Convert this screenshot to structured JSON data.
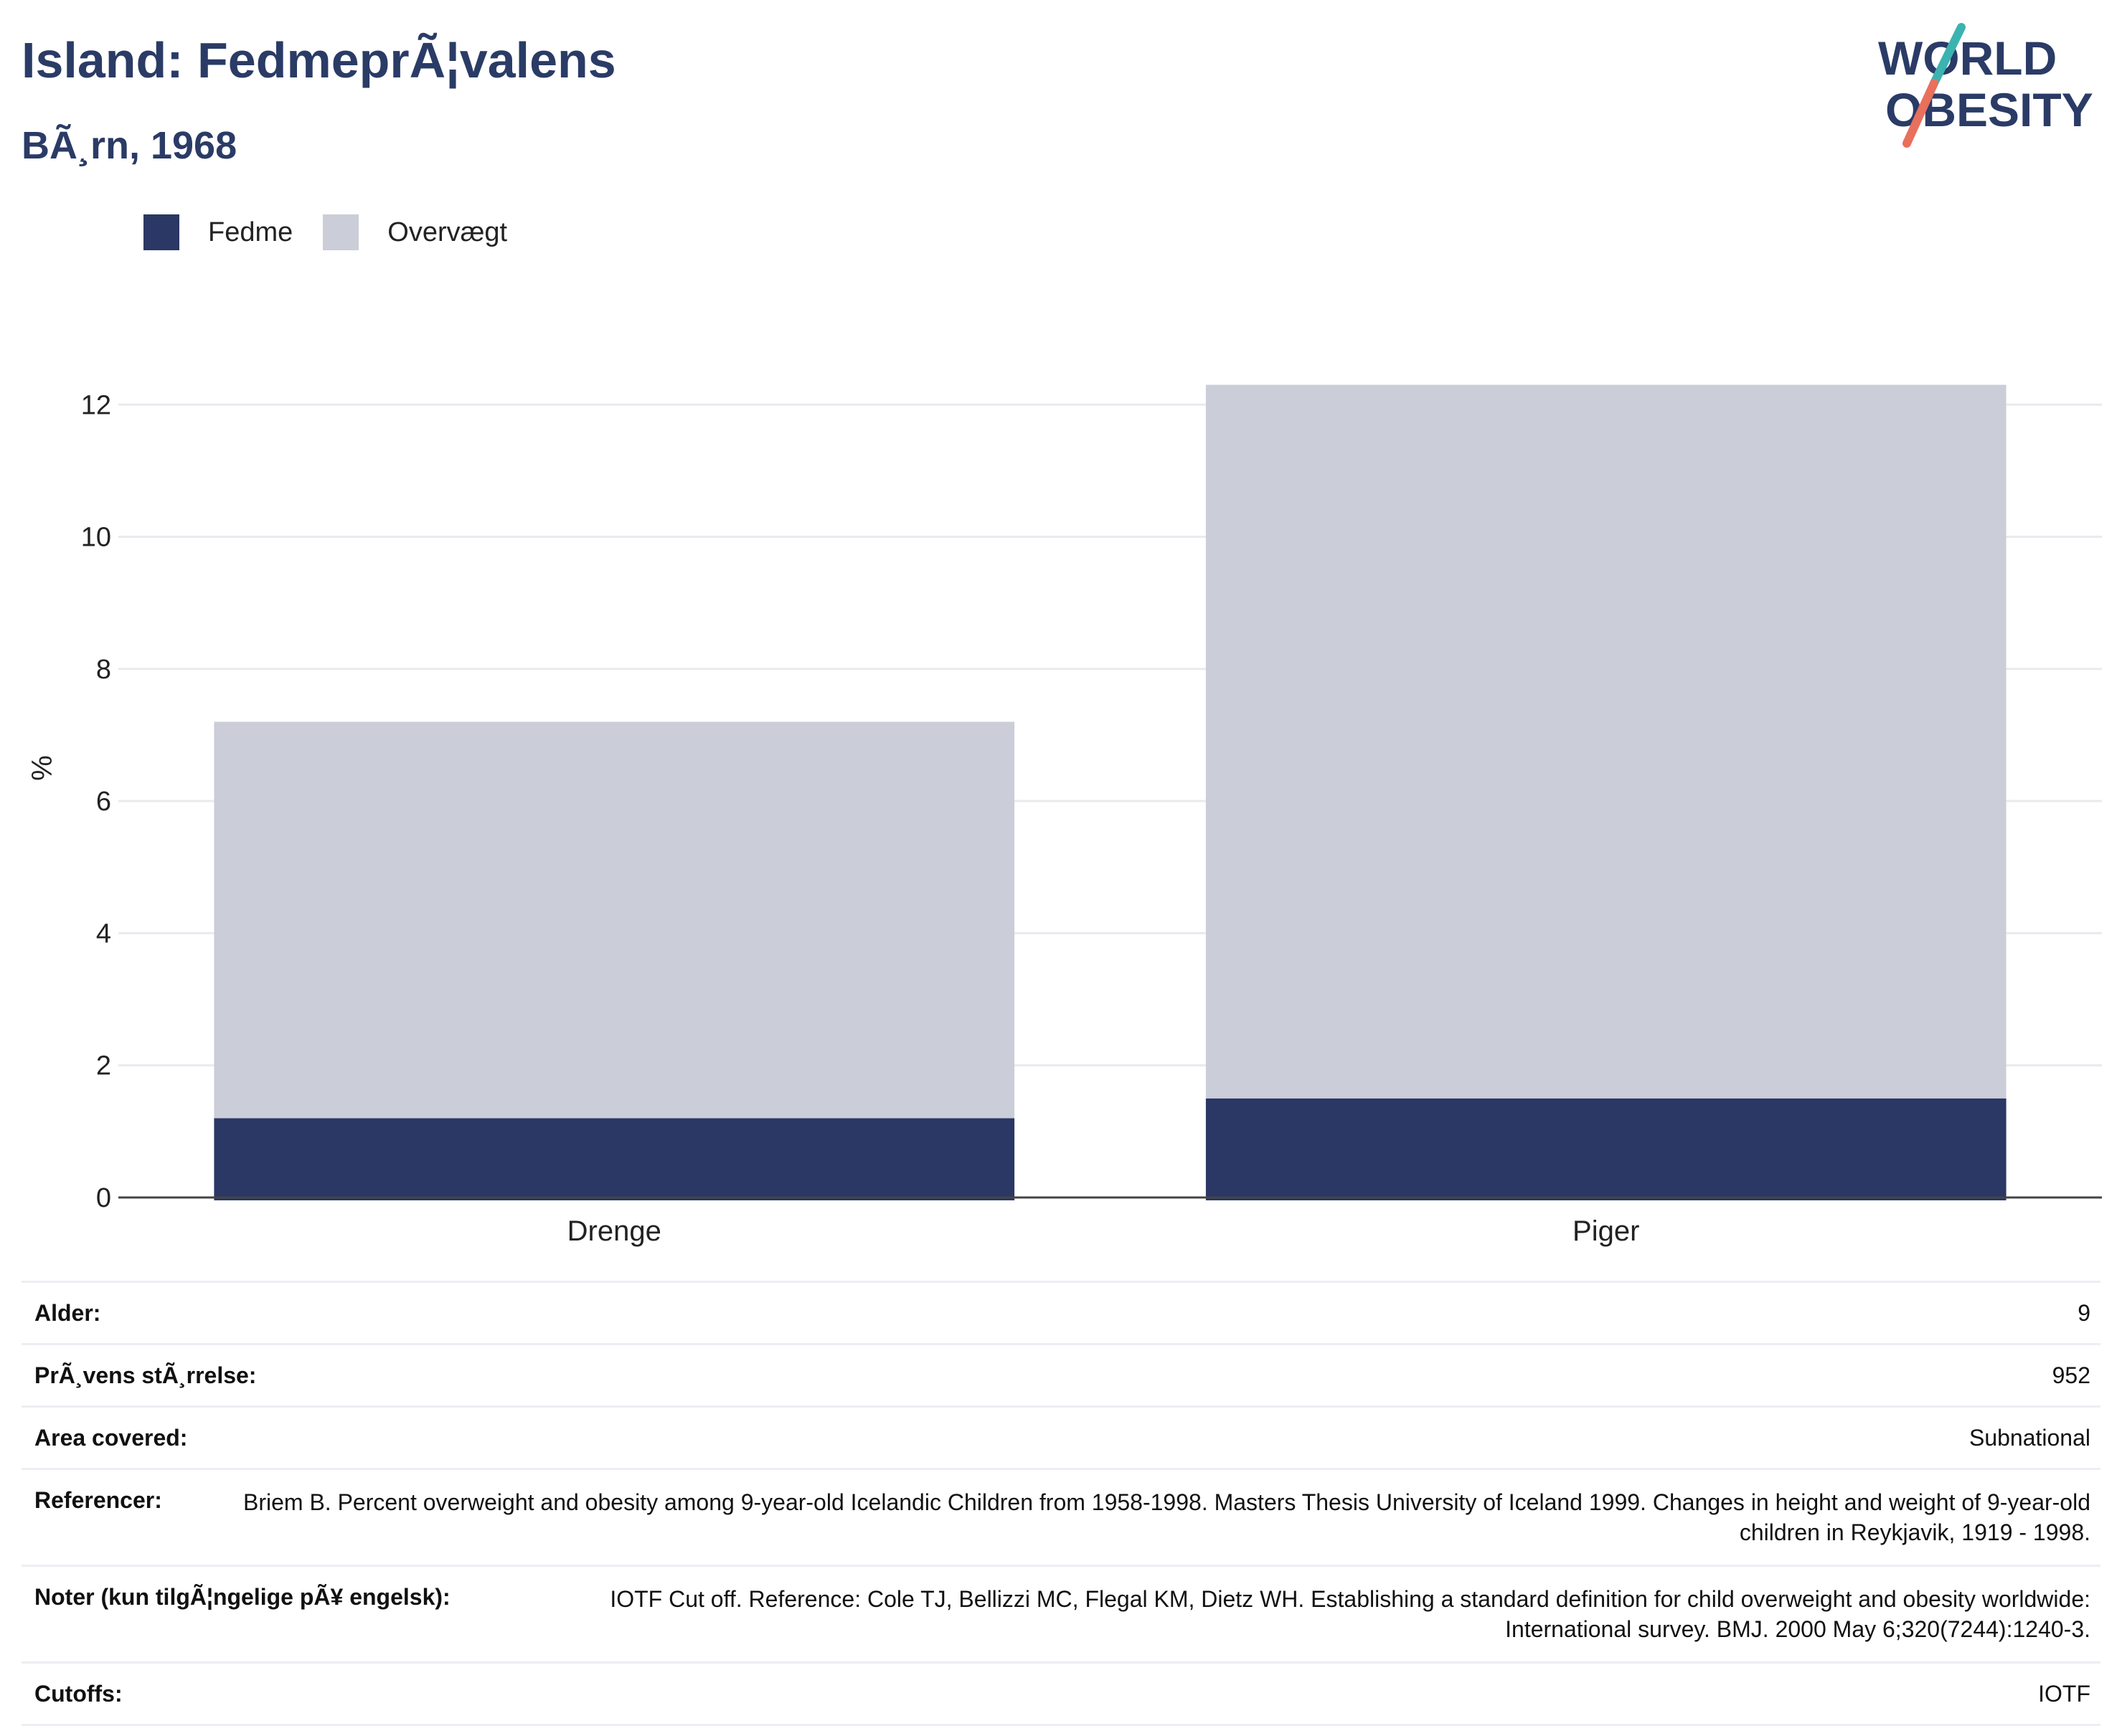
{
  "header": {
    "title": "Island: FedmeprÃ¦valens",
    "subtitle": "BÃ¸rn, 1968",
    "logo_text_line1": "WORLD",
    "logo_text_line2": "OBESITY"
  },
  "colors": {
    "brand_navy": "#2a3b66",
    "obesity": "#2b3764",
    "overweight": "#cbcdd8",
    "logo_teal": "#3bb3b0",
    "logo_coral": "#e8705c"
  },
  "legend": [
    {
      "label": "Fedme",
      "color": "#2b3764"
    },
    {
      "label": "Overvægt",
      "color": "#cbcdd8"
    }
  ],
  "chart_data": {
    "type": "bar",
    "stacked": true,
    "categories": [
      "Drenge",
      "Piger"
    ],
    "series": [
      {
        "name": "Fedme",
        "values": [
          1.2,
          1.5
        ]
      },
      {
        "name": "Overvægt",
        "values": [
          6.0,
          10.8
        ]
      }
    ],
    "ylabel": "%",
    "ylim": [
      0,
      14
    ],
    "yticks": [
      0,
      2,
      4,
      6,
      8,
      10,
      12
    ],
    "grid": true,
    "legend_position": "top-left"
  },
  "info": [
    {
      "label": "Alder:",
      "value": "9"
    },
    {
      "label": "PrÃ¸vens stÃ¸rrelse:",
      "value": "952"
    },
    {
      "label": "Area covered:",
      "value": "Subnational"
    },
    {
      "label": "Referencer:",
      "value": "Briem B. Percent overweight and obesity among 9-year-old Icelandic Children from 1958-1998. Masters Thesis University of Iceland 1999. Changes in height and weight of 9-year-old children in Reykjavik, 1919 - 1998."
    },
    {
      "label": "Noter (kun tilgÃ¦ngelige pÃ¥ engelsk):",
      "value": "IOTF Cut off. Reference: Cole TJ, Bellizzi MC, Flegal KM, Dietz WH. Establishing a standard definition for child overweight and obesity worldwide: International survey. BMJ. 2000 May 6;320(7244):1240-3."
    },
    {
      "label": "Cutoffs:",
      "value": "IOTF"
    }
  ]
}
